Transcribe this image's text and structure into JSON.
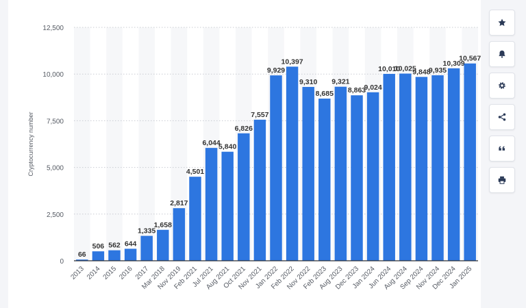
{
  "chart_data": {
    "type": "bar",
    "title": "",
    "xlabel": "",
    "ylabel": "Cryptocurrency number",
    "ylim": [
      0,
      12500
    ],
    "yticks": [
      0,
      2500,
      5000,
      7500,
      10000,
      12500
    ],
    "ytick_labels": [
      "0",
      "2,500",
      "5,000",
      "7,500",
      "10,000",
      "12,500"
    ],
    "grid": true,
    "legend": "none",
    "bar_color": "#2d76e0",
    "categories": [
      "2013",
      "2014",
      "2015",
      "2016",
      "2017",
      "Mar 2018",
      "Nov 2019",
      "Feb 2021",
      "Jul 2021",
      "Aug 2021",
      "Oct 2021",
      "Nov 2021",
      "Jan 2022",
      "Feb 2022",
      "Nov 2022",
      "Feb 2023",
      "Aug 2023",
      "Dec 2023",
      "Jan 2024",
      "Jun 2024",
      "Aug 2024",
      "Sep 2024",
      "Nov 2024",
      "Dec 2024",
      "Jan 2025"
    ],
    "values": [
      66,
      506,
      562,
      644,
      1335,
      1658,
      2817,
      4501,
      6044,
      5840,
      6826,
      7557,
      9929,
      10397,
      9310,
      8685,
      9321,
      8863,
      9024,
      10010,
      10025,
      9848,
      9935,
      10309,
      10567
    ],
    "value_labels": [
      "66",
      "506",
      "562",
      "644",
      "1,335",
      "1,658",
      "2,817",
      "4,501",
      "6,044",
      "5,840",
      "6,826",
      "7,557",
      "9,929",
      "10,397",
      "9,310",
      "8,685",
      "9,321",
      "8,863",
      "9,024",
      "10,010",
      "10,025",
      "9,848",
      "9,935",
      "10,309",
      "10,567"
    ]
  },
  "toolbar": {
    "buttons": [
      {
        "name": "star-icon",
        "label": "favorite"
      },
      {
        "name": "bell-icon",
        "label": "notifications"
      },
      {
        "name": "gear-icon",
        "label": "settings"
      },
      {
        "name": "share-icon",
        "label": "share"
      },
      {
        "name": "quote-icon",
        "label": "cite"
      },
      {
        "name": "print-icon",
        "label": "print"
      }
    ]
  }
}
